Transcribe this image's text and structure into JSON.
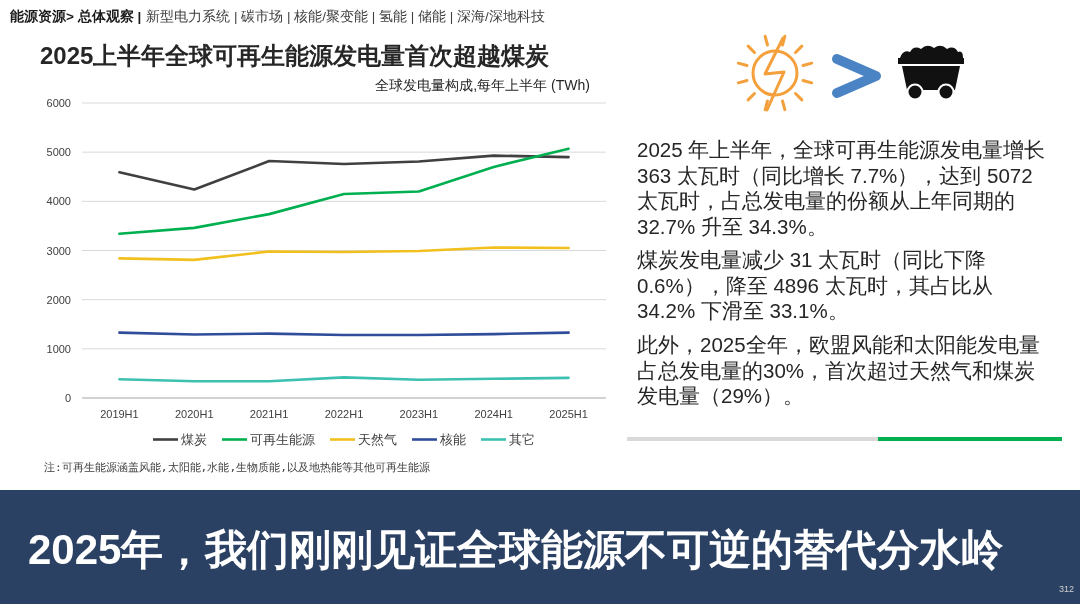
{
  "chart_data": {
    "type": "line",
    "title": "2025上半年全球可再生能源发电量首次超越煤炭",
    "subtitle": "全球发电量构成,每年上半年 (TWh)",
    "categories": [
      "2019H1",
      "2020H1",
      "2021H1",
      "2022H1",
      "2023H1",
      "2024H1",
      "2025H1"
    ],
    "series": [
      {
        "name": "煤炭",
        "color": "#404040",
        "values": [
          4590,
          4240,
          4820,
          4760,
          4810,
          4930,
          4900
        ]
      },
      {
        "name": "可再生能源",
        "color": "#00b050",
        "values": [
          3340,
          3460,
          3740,
          4150,
          4200,
          4700,
          5070
        ]
      },
      {
        "name": "天然气",
        "color": "#f2c01e",
        "values": [
          2840,
          2810,
          2980,
          2970,
          2990,
          3060,
          3050
        ]
      },
      {
        "name": "核能",
        "color": "#2f4d9a",
        "values": [
          1330,
          1290,
          1310,
          1280,
          1280,
          1300,
          1330
        ]
      },
      {
        "name": "其它",
        "color": "#3cc0b0",
        "values": [
          380,
          340,
          340,
          420,
          370,
          390,
          410
        ]
      }
    ],
    "ylim": [
      0,
      6000
    ],
    "yticks": [
      0,
      1000,
      2000,
      3000,
      4000,
      5000,
      6000
    ],
    "grid": "y",
    "legend": "bottom",
    "line_style": "solid",
    "annotations": [
      "能源资源> 总体观察 |",
      "新型电力系统 | 碳市场 | 核能/聚变能 | 氢能 | 储能 | 深海/深地科技",
      "2025 年上半年，全球可再生能源发电量增长 363 太瓦时（同比增长 7.7%），达到 5072 太瓦时，占总发电量的份额从上年同期的 32.7% 升至 34.3%。",
      "煤炭发电量减少 31 太瓦时（同比下降 0.6%），降至 4896 太瓦时，其占比从 34.2% 下滑至 33.1%。",
      "此外，2025全年，欧盟风能和太阳能发电量占总发电量的30%，首次超过天然气和煤炭发电量（29%）。",
      "注:可再生能源涵盖风能,太阳能,水能,生物质能,以及地热能等其他可再生能源",
      "2025年，我们刚刚见证全球能源不可逆的替代分水岭",
      "312"
    ]
  }
}
